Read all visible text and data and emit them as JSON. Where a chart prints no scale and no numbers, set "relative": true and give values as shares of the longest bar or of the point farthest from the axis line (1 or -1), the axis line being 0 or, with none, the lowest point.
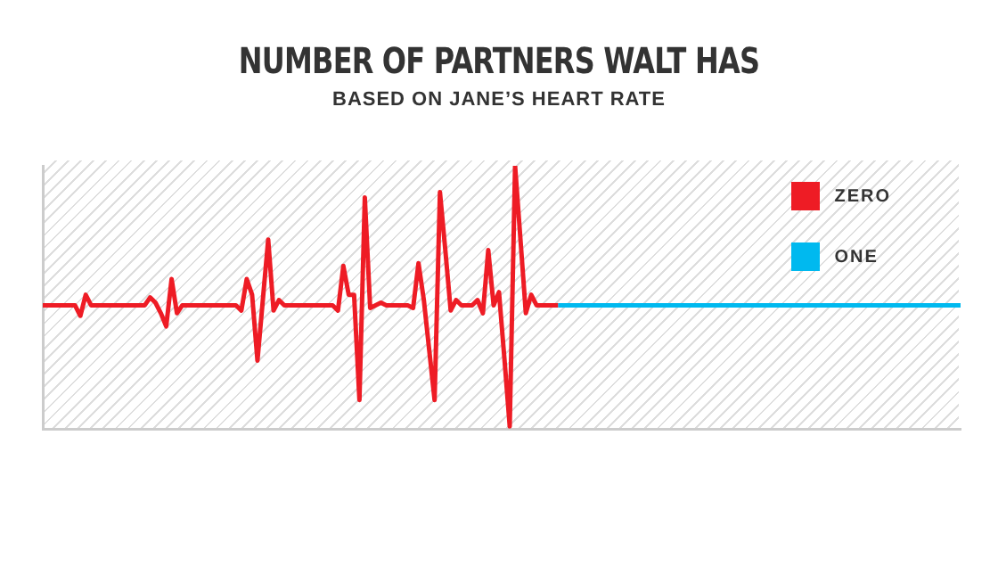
{
  "chart_data": {
    "type": "line",
    "title": "NUMBER OF PARTNERS WALT HAS",
    "subtitle": "BASED ON JANE’S HEART RATE",
    "relative": true,
    "grid": false,
    "legend": "top right",
    "marker": "none",
    "categories": [
      null,
      null,
      null,
      null,
      null,
      null,
      null,
      null,
      null,
      null,
      null,
      null,
      null,
      null,
      null,
      null,
      null,
      null,
      null,
      null,
      null,
      null,
      null,
      null,
      null,
      null,
      null,
      null,
      null,
      null,
      null,
      null,
      null,
      null,
      null,
      null,
      null,
      null,
      null,
      null,
      null,
      null,
      null,
      null,
      null,
      null,
      null,
      null,
      null,
      null,
      null,
      null,
      null,
      null,
      null,
      null,
      null,
      null,
      null,
      null,
      null,
      null,
      null,
      null,
      null,
      null,
      null,
      null,
      null,
      null,
      null,
      null,
      null,
      null,
      null,
      null,
      null,
      null,
      null,
      null,
      null,
      null,
      null,
      null,
      null,
      null,
      null,
      null,
      null,
      null,
      null,
      null,
      null,
      null,
      null,
      null,
      null,
      null,
      null,
      null,
      null,
      null,
      null,
      null,
      null,
      null,
      null,
      null,
      null,
      null,
      null,
      null,
      null,
      null,
      null,
      null,
      null,
      null,
      null,
      null,
      null,
      null,
      null,
      null,
      null,
      null,
      null,
      null,
      null,
      null,
      null,
      null,
      null,
      null,
      null,
      null,
      null,
      null,
      null,
      null,
      null,
      null,
      null,
      null,
      null,
      null,
      null,
      null,
      null,
      null,
      null,
      null,
      null,
      null,
      null,
      null,
      null,
      null,
      null,
      null,
      null,
      null,
      null,
      null,
      null,
      null,
      null,
      null,
      null,
      null,
      null,
      null
    ],
    "series": [
      {
        "name": "ZERO",
        "color": "#ee1c25",
        "values": [
          0.47,
          0.47,
          0.47,
          0.47,
          0.47,
          0.47,
          0.47,
          0.43,
          0.51,
          0.47,
          0.47,
          0.47,
          0.47,
          0.47,
          0.47,
          0.47,
          0.47,
          0.47,
          0.47,
          0.47,
          0.5,
          0.48,
          0.44,
          0.39,
          0.57,
          0.44,
          0.47,
          0.47,
          0.47,
          0.47,
          0.47,
          0.47,
          0.47,
          0.47,
          0.47,
          0.47,
          0.47,
          0.45,
          0.57,
          0.51,
          0.26,
          0.49,
          0.72,
          0.45,
          0.49,
          0.47,
          0.47,
          0.47,
          0.47,
          0.47,
          0.47,
          0.47,
          0.47,
          0.47,
          0.47,
          0.45,
          0.62,
          0.51,
          0.51,
          0.11,
          0.88,
          0.46,
          0.47,
          0.48,
          0.47,
          0.47,
          0.47,
          0.47,
          0.47,
          0.46,
          0.63,
          0.49,
          0.3,
          0.11,
          0.9,
          0.68,
          0.45,
          0.49,
          0.47,
          0.47,
          0.47,
          0.49,
          0.44,
          0.68,
          0.47,
          0.52,
          0.27,
          0.01,
          1,
          0.72,
          0.44,
          0.51,
          0.47,
          0.47,
          0.47,
          0.47,
          0.47,
          null,
          null,
          null,
          null,
          null,
          null,
          null,
          null,
          null,
          null,
          null,
          null,
          null,
          null,
          null,
          null,
          null,
          null,
          null,
          null,
          null,
          null,
          null,
          null,
          null,
          null,
          null,
          null,
          null,
          null,
          null,
          null,
          null,
          null,
          null,
          null,
          null,
          null,
          null,
          null,
          null,
          null,
          null,
          null,
          null,
          null,
          null,
          null,
          null,
          null,
          null,
          null,
          null,
          null,
          null,
          null,
          null,
          null,
          null,
          null,
          null,
          null,
          null,
          null,
          null,
          null,
          null,
          null,
          null,
          null,
          null,
          null,
          null,
          null,
          null
        ]
      },
      {
        "name": "ONE",
        "color": "#00b9ef",
        "values": [
          null,
          null,
          null,
          null,
          null,
          null,
          null,
          null,
          null,
          null,
          null,
          null,
          null,
          null,
          null,
          null,
          null,
          null,
          null,
          null,
          null,
          null,
          null,
          null,
          null,
          null,
          null,
          null,
          null,
          null,
          null,
          null,
          null,
          null,
          null,
          null,
          null,
          null,
          null,
          null,
          null,
          null,
          null,
          null,
          null,
          null,
          null,
          null,
          null,
          null,
          null,
          null,
          null,
          null,
          null,
          null,
          null,
          null,
          null,
          null,
          null,
          null,
          null,
          null,
          null,
          null,
          null,
          null,
          null,
          null,
          null,
          null,
          null,
          null,
          null,
          null,
          null,
          null,
          null,
          null,
          null,
          null,
          null,
          null,
          null,
          null,
          null,
          null,
          null,
          null,
          null,
          null,
          null,
          null,
          null,
          null,
          0.47,
          0.47,
          0.47,
          0.47,
          0.47,
          0.47,
          0.47,
          0.47,
          0.47,
          0.47,
          0.47,
          0.47,
          0.47,
          0.47,
          0.47,
          0.47,
          0.47,
          0.47,
          0.47,
          0.47,
          0.47,
          0.47,
          0.47,
          0.47,
          0.47,
          0.47,
          0.47,
          0.47,
          0.47,
          0.47,
          0.47,
          0.47,
          0.47,
          0.47,
          0.47,
          0.47,
          0.47,
          0.47,
          0.47,
          0.47,
          0.47,
          0.47,
          0.47,
          0.47,
          0.47,
          0.47,
          0.47,
          0.47,
          0.47,
          0.47,
          0.47,
          0.47,
          0.47,
          0.47,
          0.47,
          0.47,
          0.47,
          0.47,
          0.47,
          0.47,
          0.47,
          0.47,
          0.47,
          0.47,
          0.47,
          0.47,
          0.47,
          0.47,
          0.47,
          0.47,
          0.47,
          0.47,
          0.47,
          0.47,
          0.47,
          0.47
        ]
      }
    ]
  }
}
